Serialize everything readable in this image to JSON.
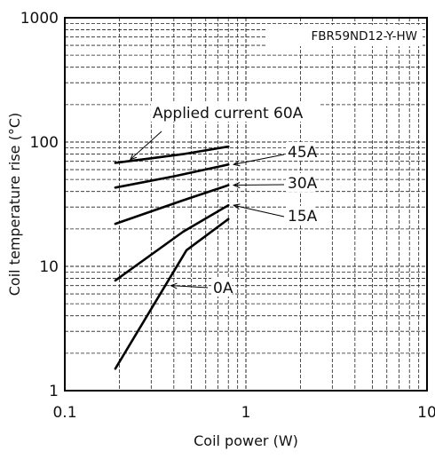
{
  "chart_data": {
    "type": "line",
    "title": "FBR59ND12-Y-HW",
    "xlabel": "Coil power (W)",
    "ylabel": "Coil temperature rise (°C)",
    "xscale": "log",
    "yscale": "log",
    "xlim": [
      0.1,
      10
    ],
    "ylim": [
      1,
      1000
    ],
    "x_ticks": [
      "0.1",
      "1",
      "10"
    ],
    "y_ticks": [
      "1",
      "10",
      "100",
      "1000"
    ],
    "grid": true,
    "series": [
      {
        "name": "Applied current 60A",
        "x": [
          0.19,
          0.3,
          0.45,
          0.8
        ],
        "y": [
          68,
          74,
          80,
          92
        ]
      },
      {
        "name": "45A",
        "x": [
          0.19,
          0.4,
          0.8
        ],
        "y": [
          43,
          53,
          66
        ]
      },
      {
        "name": "30A",
        "x": [
          0.19,
          0.45,
          0.8
        ],
        "y": [
          22,
          34,
          45
        ]
      },
      {
        "name": "15A",
        "x": [
          0.19,
          0.45,
          0.8
        ],
        "y": [
          7.7,
          19,
          31
        ]
      },
      {
        "name": "0A",
        "x": [
          0.19,
          0.47,
          0.8
        ],
        "y": [
          1.5,
          13.5,
          24
        ]
      }
    ],
    "annotations": [
      {
        "text": "Applied current 60A",
        "series": 0
      },
      {
        "text": "45A",
        "series": 1
      },
      {
        "text": "30A",
        "series": 2
      },
      {
        "text": "15A",
        "series": 3
      },
      {
        "text": "0A",
        "series": 4
      }
    ]
  }
}
